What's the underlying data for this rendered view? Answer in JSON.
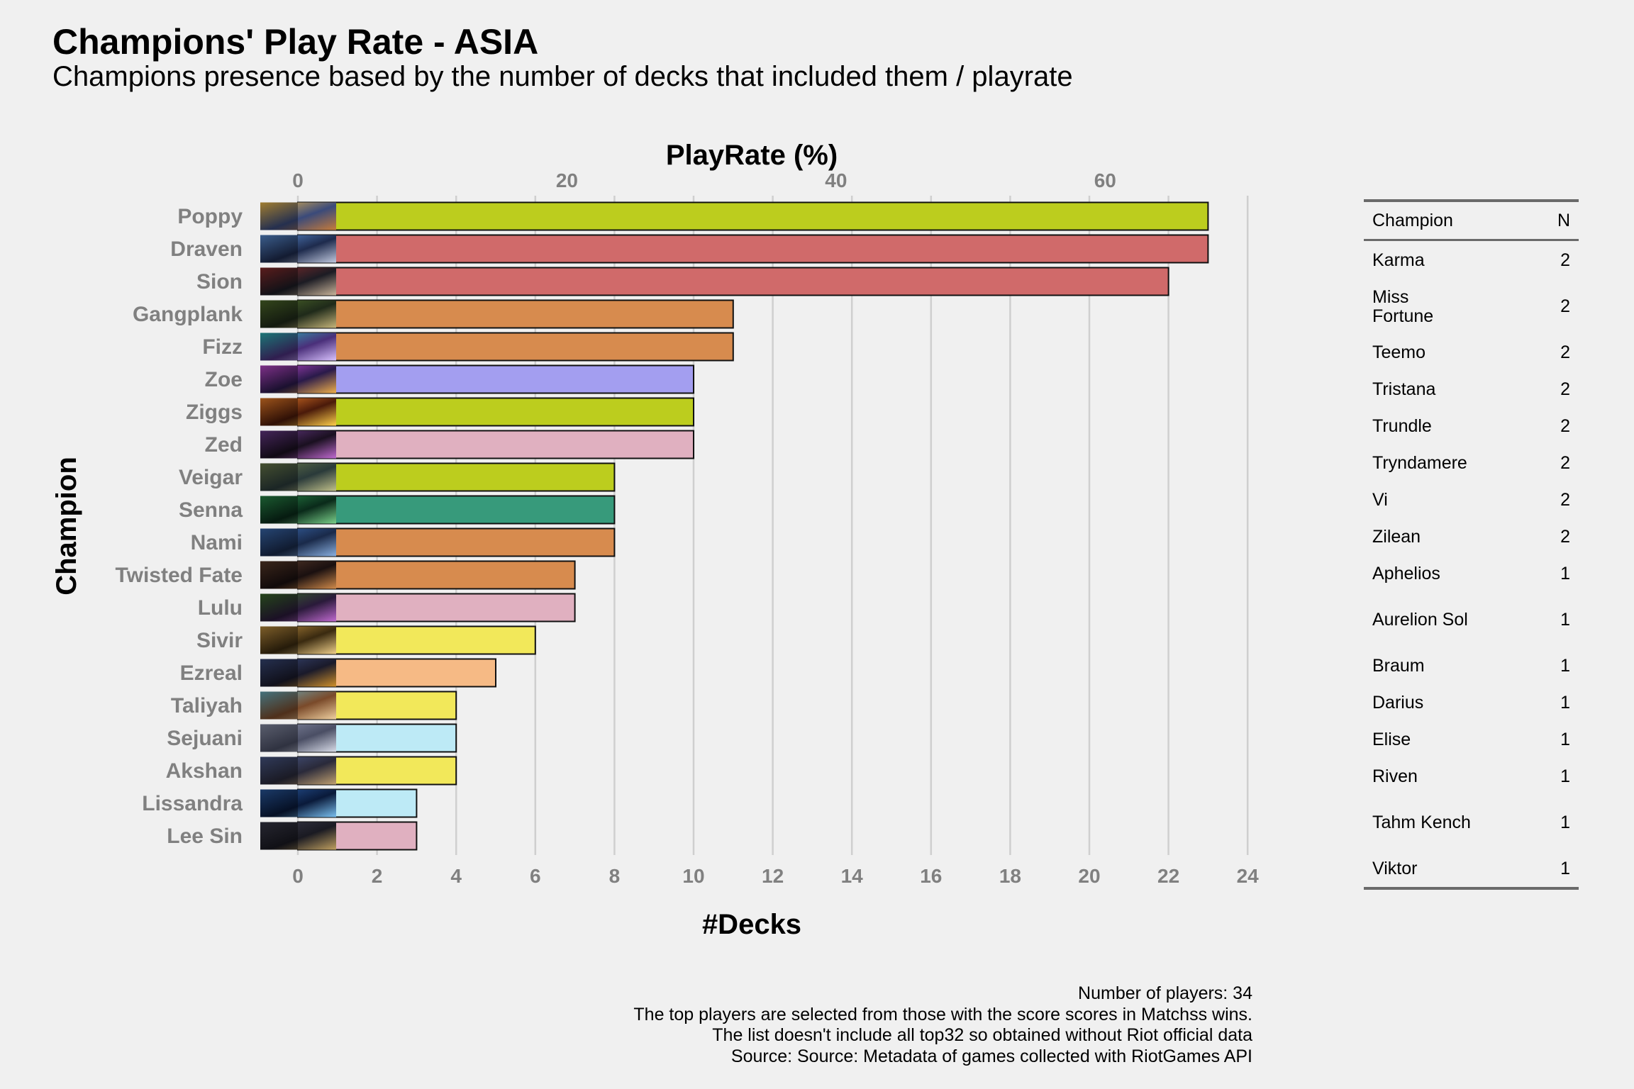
{
  "title": "Champions' Play Rate - ASIA",
  "subtitle": "Champions presence based by the number of decks that included them / playrate",
  "chart_data": {
    "type": "bar",
    "orientation": "horizontal",
    "title": "Champions' Play Rate - ASIA",
    "xlabel": "#Decks",
    "ylabel": "Champion",
    "x2label": "PlayRate (%)",
    "xlim": [
      0,
      24
    ],
    "x_ticks": [
      0,
      2,
      4,
      6,
      8,
      10,
      12,
      14,
      16,
      18,
      20,
      22,
      24
    ],
    "x2_ticks": [
      0,
      20,
      40,
      60
    ],
    "grid": "vertical",
    "legend": "none",
    "categories": [
      "Poppy",
      "Draven",
      "Sion",
      "Gangplank",
      "Fizz",
      "Zoe",
      "Ziggs",
      "Zed",
      "Veigar",
      "Senna",
      "Nami",
      "Twisted Fate",
      "Lulu",
      "Sivir",
      "Ezreal",
      "Taliyah",
      "Sejuani",
      "Akshan",
      "Lissandra",
      "Lee Sin"
    ],
    "values": [
      23,
      23,
      22,
      11,
      11,
      10,
      10,
      10,
      8,
      8,
      8,
      7,
      7,
      6,
      5,
      4,
      4,
      4,
      3,
      3
    ],
    "colors": [
      "#bccd1e",
      "#d06a6a",
      "#d06a6a",
      "#d78b4e",
      "#d78b4e",
      "#a39ef0",
      "#bccd1e",
      "#e0b0c0",
      "#bccd1e",
      "#379a7b",
      "#d78b4e",
      "#d78b4e",
      "#e0b0c0",
      "#f2e85a",
      "#f6ba85",
      "#f2e85a",
      "#bdeaf6",
      "#f2e85a",
      "#bdeaf6",
      "#e0b0c0"
    ]
  },
  "table": {
    "headers": [
      "Champion",
      "N"
    ],
    "rows": [
      {
        "champion": "Karma",
        "n": "2"
      },
      {
        "champion": "Miss Fortune",
        "n": "2"
      },
      {
        "champion": "Teemo",
        "n": "2"
      },
      {
        "champion": "Tristana",
        "n": "2"
      },
      {
        "champion": "Trundle",
        "n": "2"
      },
      {
        "champion": "Tryndamere",
        "n": "2"
      },
      {
        "champion": "Vi",
        "n": "2"
      },
      {
        "champion": "Zilean",
        "n": "2"
      },
      {
        "champion": "Aphelios",
        "n": "1"
      },
      {
        "champion": "Aurelion Sol",
        "n": "1"
      },
      {
        "champion": "Braum",
        "n": "1"
      },
      {
        "champion": "Darius",
        "n": "1"
      },
      {
        "champion": "Elise",
        "n": "1"
      },
      {
        "champion": "Riven",
        "n": "1"
      },
      {
        "champion": "Tahm Kench",
        "n": "1"
      },
      {
        "champion": "Viktor",
        "n": "1"
      }
    ]
  },
  "caption": [
    "Number of players: 34",
    "The top players are selected from those with the score scores in Matchss wins.",
    "The list doesn't include all top32 so obtained without Riot official data",
    "Source: Source: Metadata of games collected with RiotGames API"
  ]
}
